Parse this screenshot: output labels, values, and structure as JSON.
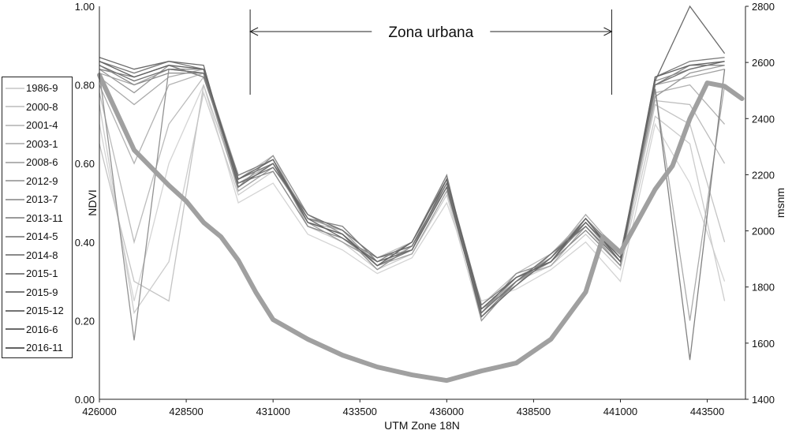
{
  "chart_data": {
    "type": "line",
    "xlabel": "UTM Zone 18N",
    "ylabel": "NDVI",
    "y2label": "msnm",
    "xlim": [
      426000,
      444600
    ],
    "ylim": [
      0,
      1
    ],
    "y2lim": [
      1400,
      2800
    ],
    "xticks": [
      "426000",
      "428500",
      "431000",
      "433500",
      "436000",
      "438500",
      "441000",
      "443500"
    ],
    "yticks": [
      "0.00",
      "0.20",
      "0.40",
      "0.60",
      "0.80",
      "1.00"
    ],
    "y2ticks": [
      "1400",
      "1600",
      "1800",
      "2000",
      "2200",
      "2400",
      "2600",
      "2800"
    ],
    "grid": false,
    "legend_position": "left",
    "annotation": {
      "text": "Zona urbana",
      "x_start": 430340,
      "x_end": 440750
    },
    "x": [
      426000,
      427000,
      428000,
      429000,
      430000,
      431000,
      432000,
      433000,
      434000,
      435000,
      436000,
      437000,
      438000,
      439000,
      440000,
      441000,
      442000,
      443000,
      444000
    ],
    "series": [
      {
        "name": "1986-9",
        "color": "#d4d4d4",
        "values": [
          0.7,
          0.25,
          0.6,
          0.8,
          0.5,
          0.55,
          0.42,
          0.38,
          0.32,
          0.36,
          0.5,
          0.25,
          0.28,
          0.33,
          0.4,
          0.3,
          0.7,
          0.55,
          0.3
        ]
      },
      {
        "name": "2000-8",
        "color": "#cccccc",
        "values": [
          0.75,
          0.22,
          0.35,
          0.78,
          0.52,
          0.58,
          0.44,
          0.4,
          0.33,
          0.37,
          0.52,
          0.2,
          0.3,
          0.34,
          0.42,
          0.33,
          0.72,
          0.65,
          0.25
        ]
      },
      {
        "name": "2001-4",
        "color": "#c4c4c4",
        "values": [
          0.65,
          0.3,
          0.25,
          0.8,
          0.54,
          0.6,
          0.46,
          0.41,
          0.34,
          0.39,
          0.54,
          0.22,
          0.31,
          0.36,
          0.44,
          0.34,
          0.75,
          0.7,
          0.4
        ]
      },
      {
        "name": "2003-1",
        "color": "#bcbcbc",
        "values": [
          0.78,
          0.4,
          0.7,
          0.82,
          0.56,
          0.62,
          0.45,
          0.43,
          0.36,
          0.4,
          0.56,
          0.24,
          0.32,
          0.37,
          0.46,
          0.36,
          0.76,
          0.75,
          0.6
        ]
      },
      {
        "name": "2008-6",
        "color": "#b2b2b2",
        "values": [
          0.8,
          0.6,
          0.8,
          0.83,
          0.55,
          0.6,
          0.47,
          0.42,
          0.35,
          0.38,
          0.55,
          0.23,
          0.3,
          0.35,
          0.45,
          0.35,
          0.78,
          0.8,
          0.7
        ]
      },
      {
        "name": "2012-9",
        "color": "#aaaaaa",
        "values": [
          0.82,
          0.75,
          0.82,
          0.84,
          0.57,
          0.61,
          0.44,
          0.41,
          0.36,
          0.39,
          0.57,
          0.21,
          0.29,
          0.36,
          0.47,
          0.37,
          0.79,
          0.2,
          0.8
        ]
      },
      {
        "name": "2013-7",
        "color": "#a2a2a2",
        "values": [
          0.83,
          0.8,
          0.84,
          0.83,
          0.53,
          0.59,
          0.46,
          0.43,
          0.34,
          0.37,
          0.53,
          0.22,
          0.31,
          0.34,
          0.44,
          0.34,
          0.8,
          0.82,
          0.84
        ]
      },
      {
        "name": "2013-11",
        "color": "#9a9a9a",
        "values": [
          0.84,
          0.78,
          0.85,
          0.82,
          0.56,
          0.6,
          0.45,
          0.4,
          0.35,
          0.38,
          0.56,
          0.2,
          0.3,
          0.35,
          0.46,
          0.36,
          0.77,
          0.83,
          0.85
        ]
      },
      {
        "name": "2014-5",
        "color": "#929292",
        "values": [
          0.83,
          0.15,
          0.84,
          0.84,
          0.54,
          0.62,
          0.47,
          0.42,
          0.33,
          0.39,
          0.54,
          0.23,
          0.29,
          0.37,
          0.45,
          0.35,
          0.81,
          0.84,
          0.86
        ]
      },
      {
        "name": "2014-8",
        "color": "#8a8a8a",
        "values": [
          0.85,
          0.8,
          0.83,
          0.83,
          0.55,
          0.58,
          0.44,
          0.41,
          0.36,
          0.38,
          0.55,
          0.22,
          0.32,
          0.35,
          0.43,
          0.34,
          0.8,
          0.85,
          0.85
        ]
      },
      {
        "name": "2015-1",
        "color": "#828282",
        "values": [
          0.84,
          0.82,
          0.85,
          0.82,
          0.57,
          0.61,
          0.46,
          0.44,
          0.35,
          0.4,
          0.57,
          0.21,
          0.3,
          0.36,
          0.46,
          0.37,
          0.79,
          0.1,
          0.84
        ]
      },
      {
        "name": "2015-9",
        "color": "#7a7a7a",
        "values": [
          0.86,
          0.83,
          0.86,
          0.84,
          0.56,
          0.6,
          0.45,
          0.42,
          0.34,
          0.38,
          0.56,
          0.24,
          0.31,
          0.35,
          0.45,
          0.36,
          0.82,
          0.86,
          0.87
        ]
      },
      {
        "name": "2015-12",
        "color": "#727272",
        "values": [
          0.85,
          0.81,
          0.84,
          0.83,
          0.55,
          0.59,
          0.47,
          0.43,
          0.36,
          0.39,
          0.55,
          0.22,
          0.3,
          0.37,
          0.44,
          0.35,
          0.8,
          0.84,
          0.86
        ]
      },
      {
        "name": "2016-6",
        "color": "#6a6a6a",
        "values": [
          0.87,
          0.84,
          0.86,
          0.85,
          0.54,
          0.6,
          0.46,
          0.41,
          0.35,
          0.38,
          0.54,
          0.21,
          0.29,
          0.36,
          0.45,
          0.36,
          0.81,
          1.0,
          0.88
        ]
      },
      {
        "name": "2016-11",
        "color": "#626262",
        "values": [
          0.86,
          0.82,
          0.85,
          0.84,
          0.56,
          0.61,
          0.45,
          0.42,
          0.34,
          0.4,
          0.56,
          0.23,
          0.31,
          0.35,
          0.46,
          0.35,
          0.82,
          0.85,
          0.86
        ]
      }
    ],
    "elevation": {
      "axis": "right",
      "color": "#a0a0a0",
      "x": [
        426000,
        427000,
        428000,
        428500,
        429000,
        429500,
        430000,
        430500,
        431000,
        432000,
        433000,
        434000,
        435000,
        436000,
        437000,
        438000,
        439000,
        440000,
        440500,
        441000,
        442000,
        442500,
        443000,
        443500,
        444000,
        444500
      ],
      "values": [
        2555,
        2288,
        2162,
        2106,
        2030,
        1979,
        1895,
        1782,
        1684,
        1614,
        1557,
        1515,
        1487,
        1467,
        1501,
        1529,
        1614,
        1782,
        1979,
        1923,
        2148,
        2232,
        2400,
        2527,
        2515,
        2471
      ]
    }
  }
}
